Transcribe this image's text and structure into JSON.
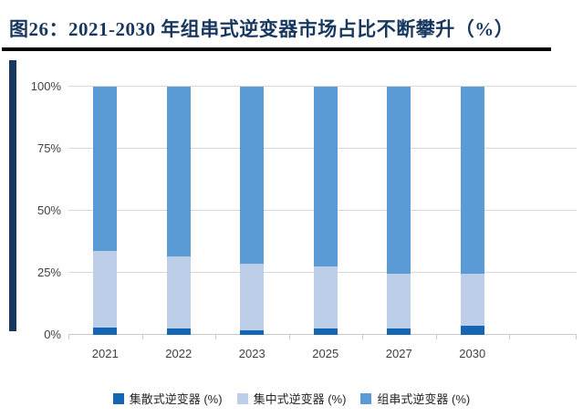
{
  "figure": {
    "title": "图26：2021-2030 年组串式逆变器市场占比不断攀升（%）"
  },
  "colors": {
    "title_text": "#17375E",
    "title_rule": "#000000",
    "accent_bar": "#17375E",
    "gridline": "#D9D9D9",
    "axis_line": "#C9C9C9",
    "axis_text": "#3F3F3F",
    "legend_text": "#262626"
  },
  "chart_data": {
    "type": "bar",
    "stacked": true,
    "title": "图26：2021-2030 年组串式逆变器市场占比不断攀升（%）",
    "categories": [
      "2021",
      "2022",
      "2023",
      "2025",
      "2027",
      "2030"
    ],
    "series": [
      {
        "name": "集散式逆变器 (%)",
        "color": "#1565B5",
        "values": [
          3,
          2.5,
          2,
          2.5,
          2.5,
          3.5
        ]
      },
      {
        "name": "集中式逆变器 (%)",
        "color": "#BCCEE8",
        "values": [
          31,
          29,
          26.5,
          25,
          22,
          21
        ]
      },
      {
        "name": "组串式逆变器 (%)",
        "color": "#5B9BD5",
        "values": [
          66,
          68.5,
          71.5,
          72.5,
          75.5,
          75.5
        ]
      }
    ],
    "xlabel": "",
    "ylabel": "",
    "ylim": [
      0,
      100
    ],
    "y_ticks": [
      {
        "value": 0,
        "label": "0%"
      },
      {
        "value": 25,
        "label": "25%"
      },
      {
        "value": 50,
        "label": "50%"
      },
      {
        "value": 75,
        "label": "75%"
      },
      {
        "value": 100,
        "label": "100%"
      }
    ],
    "grid": true,
    "legend_position": "bottom"
  }
}
